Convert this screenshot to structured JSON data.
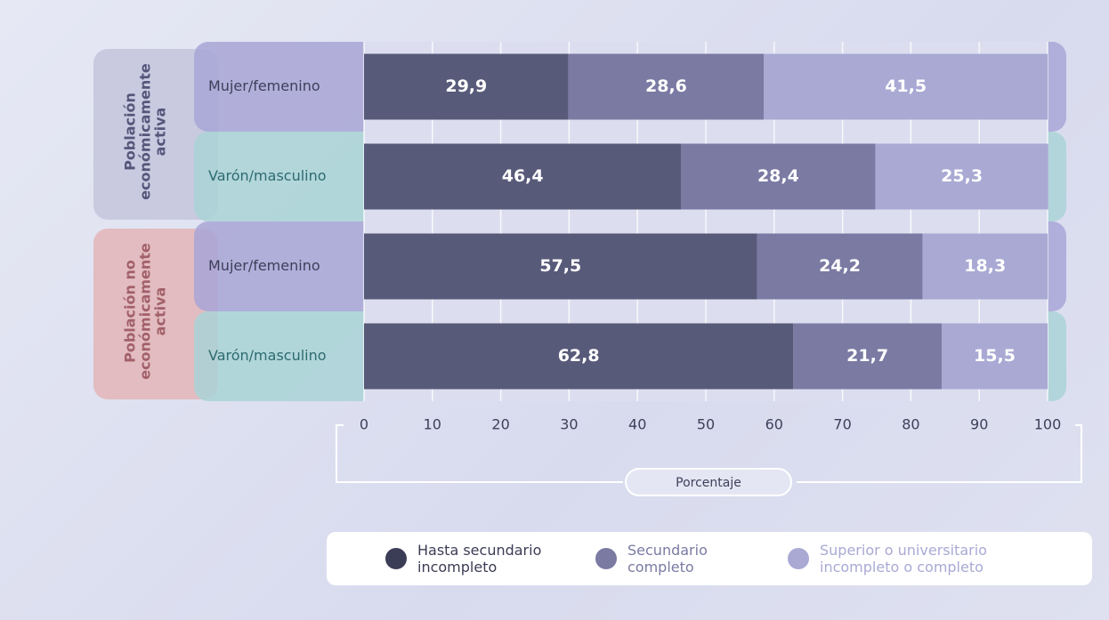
{
  "chart_data": {
    "type": "bar",
    "orientation": "horizontal",
    "stacked": true,
    "groups": [
      "Población económicamente activa",
      "Población no económicamente activa"
    ],
    "categories": [
      "Mujer/femenino",
      "Varón/masculino",
      "Mujer/femenino",
      "Varón/masculino"
    ],
    "series": [
      {
        "name": "Hasta secundario incompleto",
        "color": "#585a7a",
        "values": [
          29.9,
          46.4,
          57.5,
          62.8
        ],
        "value_labels": [
          "29,9",
          "46,4",
          "57,5",
          "62,8"
        ]
      },
      {
        "name": "Secundario completo",
        "color": "#7a7aa3",
        "values": [
          28.6,
          28.4,
          24.2,
          21.7
        ],
        "value_labels": [
          "28,6",
          "28,4",
          "24,2",
          "21,7"
        ]
      },
      {
        "name": "Superior o universitario incompleto o completo",
        "color": "#a9a9d4",
        "values": [
          41.5,
          25.3,
          18.3,
          15.5
        ],
        "value_labels": [
          "41,5",
          "25,3",
          "18,3",
          "15,5"
        ]
      }
    ],
    "xlabel": "Porcentaje",
    "xlim": [
      0,
      100
    ],
    "xticks": [
      0,
      10,
      20,
      30,
      40,
      50,
      60,
      70,
      80,
      90,
      100
    ],
    "grid": true
  }
}
